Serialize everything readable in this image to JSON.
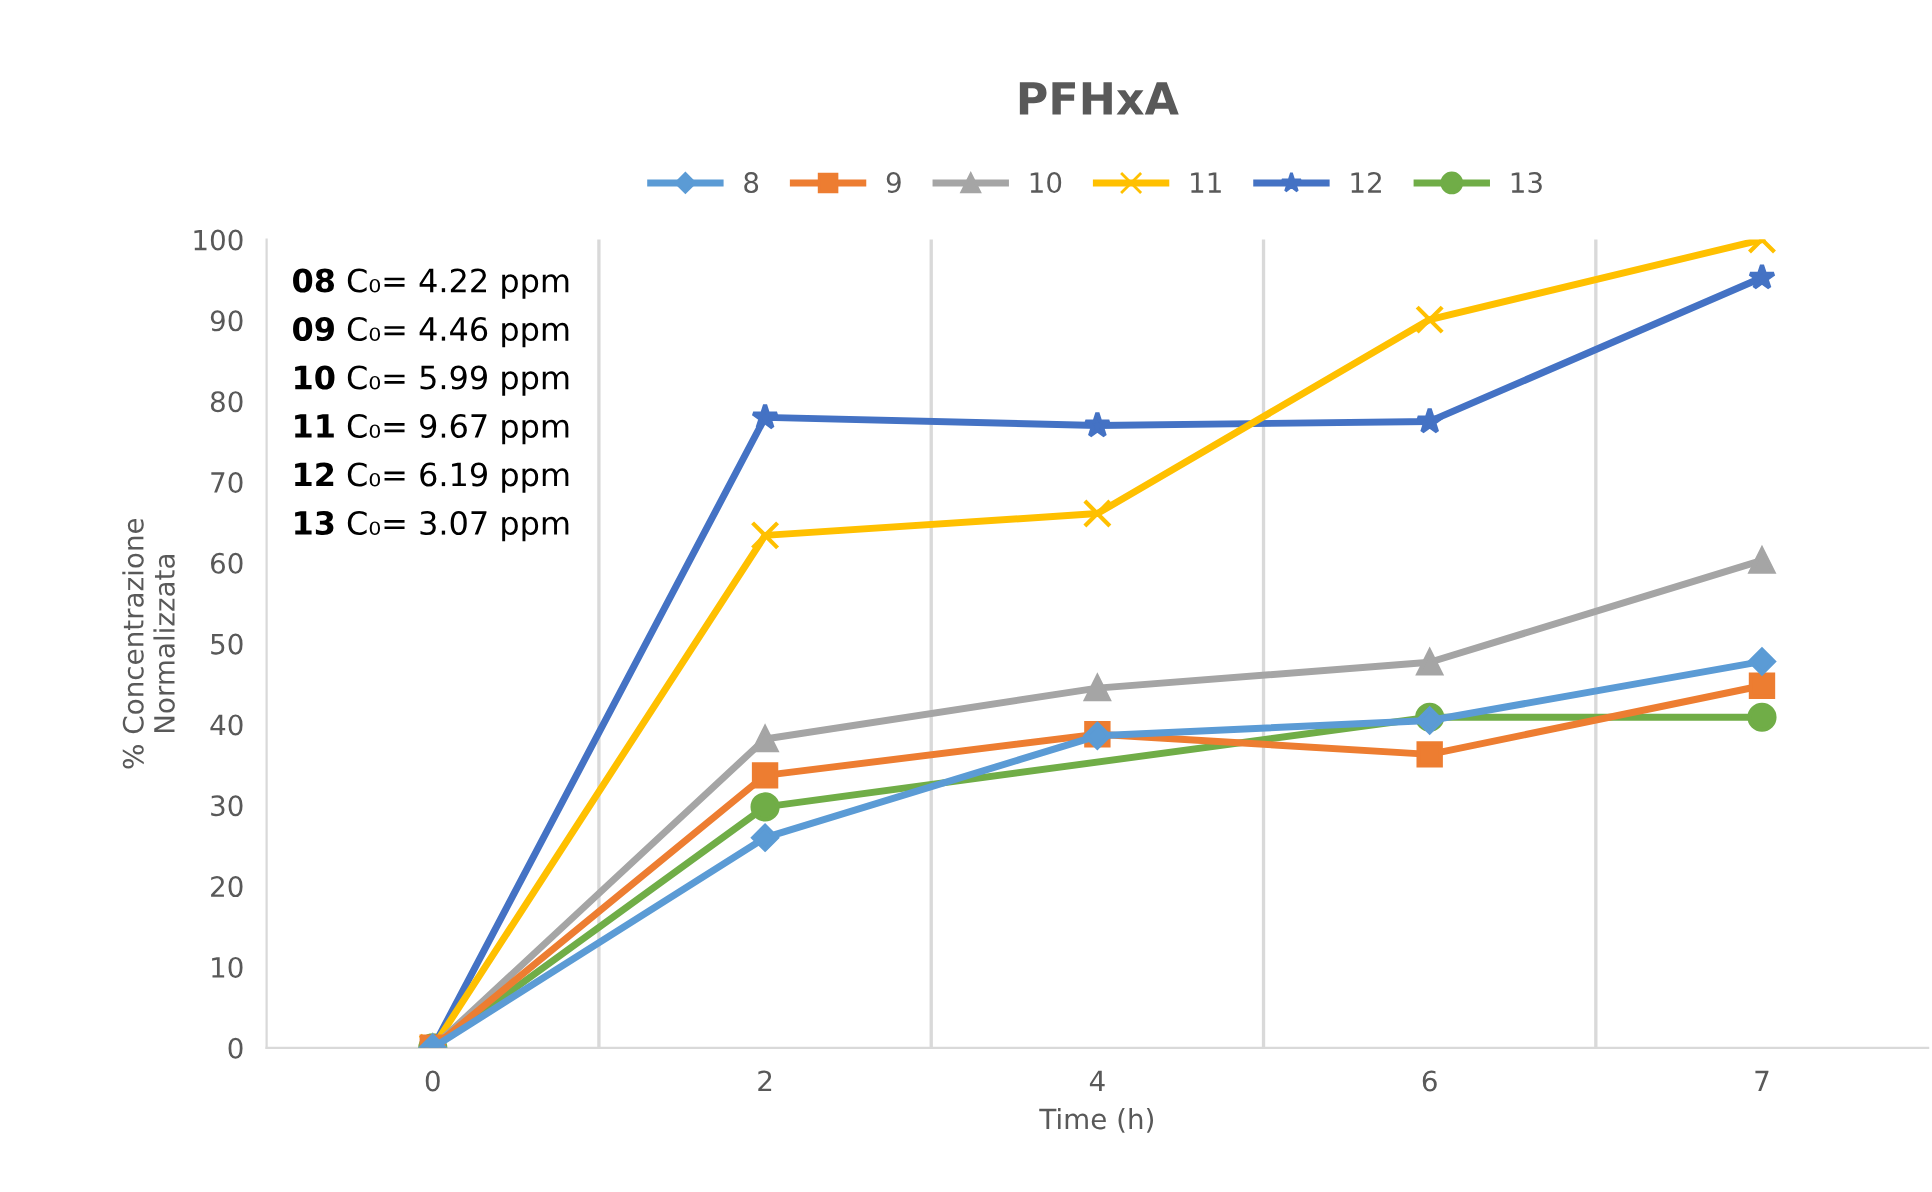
{
  "chart_data": {
    "type": "line",
    "title": "PFHxA",
    "xlabel": "Time (h)",
    "ylabel": "% Concentrazione\nNormalizzata",
    "categories": [
      "0",
      "2",
      "4",
      "6",
      "7"
    ],
    "series": [
      {
        "name": "8",
        "color": "#5b9bd5",
        "marker": "diamond",
        "values": [
          0,
          26,
          38.6,
          40.5,
          47.8
        ]
      },
      {
        "name": "9",
        "color": "#ed7d31",
        "marker": "square",
        "values": [
          0,
          33.7,
          38.8,
          36.3,
          44.8
        ]
      },
      {
        "name": "10",
        "color": "#a5a5a5",
        "marker": "triangle",
        "values": [
          0,
          38.2,
          44.5,
          47.7,
          60.3
        ]
      },
      {
        "name": "11",
        "color": "#ffc000",
        "marker": "cross",
        "values": [
          0,
          63.4,
          66.1,
          90.1,
          100
        ]
      },
      {
        "name": "12",
        "color": "#4472c4",
        "marker": "star",
        "values": [
          0,
          78,
          77,
          77.5,
          95.3
        ]
      },
      {
        "name": "13",
        "color": "#70ad47",
        "marker": "circle",
        "values": [
          0,
          29.8,
          null,
          40.9,
          40.9
        ]
      }
    ],
    "ylim": [
      0,
      100
    ],
    "yticks": [
      0,
      10,
      20,
      30,
      40,
      50,
      60,
      70,
      80,
      90,
      100
    ],
    "grid": "x",
    "legend": "top",
    "line_style": "solid",
    "annotations": [
      "08 C₀= 4.22 ppm",
      "09 C₀= 4.46 ppm",
      "10 C₀= 5.99 ppm",
      "11 C₀= 9.67 ppm",
      "12 C₀= 6.19 ppm",
      "13 C₀= 3.07 ppm"
    ]
  }
}
